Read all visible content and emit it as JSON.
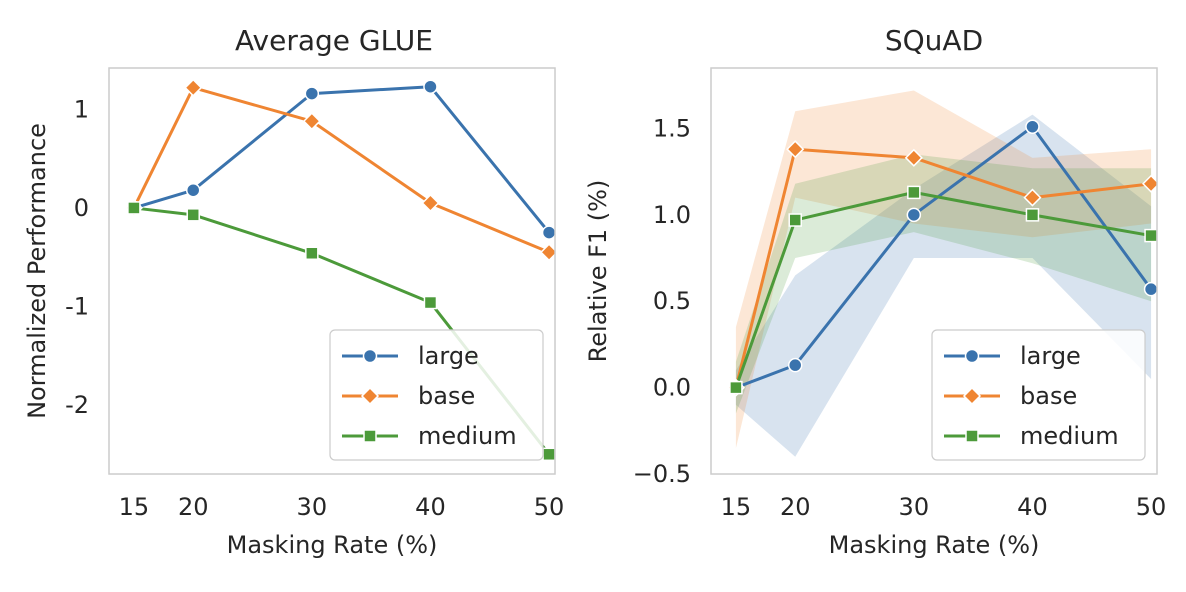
{
  "chart_data": [
    {
      "type": "line",
      "title": "Average GLUE",
      "xlabel": "Masking Rate (%)",
      "ylabel": "Normalized Performance",
      "x": [
        15,
        20,
        30,
        40,
        50
      ],
      "x_ticks": [
        "15",
        "20",
        "30",
        "40",
        "50"
      ],
      "y_ticks": [
        {
          "value": 1,
          "label": "1"
        },
        {
          "value": 0,
          "label": "0"
        },
        {
          "value": -1,
          "label": "-1"
        },
        {
          "value": -2,
          "label": "-2"
        }
      ],
      "xlim": [
        12.9,
        50.5
      ],
      "ylim": [
        -2.7,
        1.42
      ],
      "grid": false,
      "legend": "lower-right",
      "series": [
        {
          "name": "large",
          "marker": "circle",
          "values": [
            0.0,
            0.18,
            1.16,
            1.23,
            -0.25
          ]
        },
        {
          "name": "base",
          "marker": "diamond",
          "values": [
            0.0,
            1.22,
            0.88,
            0.05,
            -0.45
          ]
        },
        {
          "name": "medium",
          "marker": "square",
          "values": [
            0.0,
            -0.07,
            -0.46,
            -0.96,
            -2.5
          ]
        }
      ]
    },
    {
      "type": "line",
      "title": "SQuAD",
      "xlabel": "Masking Rate (%)",
      "ylabel": "Relative F1 (%)",
      "x": [
        15,
        20,
        30,
        40,
        50
      ],
      "x_ticks": [
        "15",
        "20",
        "30",
        "40",
        "50"
      ],
      "y_ticks": [
        {
          "value": 1.5,
          "label": "1.5"
        },
        {
          "value": 1.0,
          "label": "1.0"
        },
        {
          "value": 0.5,
          "label": "0.5"
        },
        {
          "value": 0.0,
          "label": "0.0"
        },
        {
          "value": -0.5,
          "label": "−0.5"
        }
      ],
      "xlim": [
        12.9,
        50.5
      ],
      "ylim": [
        -0.5,
        1.85
      ],
      "grid": false,
      "legend": "lower-right",
      "series": [
        {
          "name": "large",
          "marker": "circle",
          "values": [
            0.0,
            0.13,
            1.0,
            1.51,
            0.57
          ],
          "band_low": [
            -0.1,
            -0.4,
            0.75,
            0.75,
            0.05
          ],
          "band_high": [
            0.1,
            0.65,
            1.15,
            1.58,
            1.05
          ]
        },
        {
          "name": "base",
          "marker": "diamond",
          "values": [
            0.0,
            1.38,
            1.33,
            1.1,
            1.18
          ],
          "band_low": [
            -0.35,
            1.1,
            0.95,
            0.87,
            0.95
          ],
          "band_high": [
            0.35,
            1.6,
            1.72,
            1.33,
            1.38
          ]
        },
        {
          "name": "medium",
          "marker": "square",
          "values": [
            0.0,
            0.97,
            1.13,
            1.0,
            0.88
          ],
          "band_low": [
            -0.15,
            0.75,
            0.9,
            0.72,
            0.5
          ],
          "band_high": [
            0.15,
            1.18,
            1.35,
            1.27,
            1.27
          ]
        }
      ]
    }
  ],
  "colors": {
    "large": "#3a73ad",
    "base": "#ef8532",
    "medium": "#4c9a3a",
    "frame": "#cccccc",
    "text": "#262626"
  }
}
